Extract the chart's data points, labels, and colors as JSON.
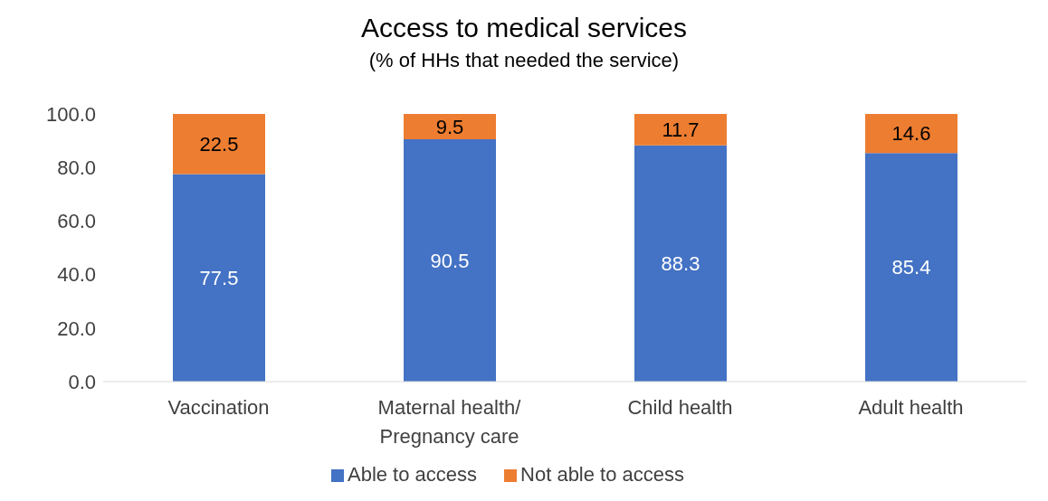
{
  "chart_data": {
    "type": "bar",
    "stacked": true,
    "title": "Access to medical services",
    "subtitle": "(% of HHs that needed the service)",
    "categories": [
      "Vaccination",
      "Maternal health/\nPregnancy care",
      "Child health",
      "Adult health"
    ],
    "series": [
      {
        "name": "Able to access",
        "color": "#4472c4",
        "values": [
          77.5,
          90.5,
          88.3,
          85.4
        ]
      },
      {
        "name": "Not able to access",
        "color": "#ed7d31",
        "values": [
          22.5,
          9.5,
          11.7,
          14.6
        ]
      }
    ],
    "ylim": [
      0,
      100
    ],
    "yticks": [
      {
        "value": 0,
        "label": "0.0"
      },
      {
        "value": 20,
        "label": "20.0"
      },
      {
        "value": 40,
        "label": "40.0"
      },
      {
        "value": 60,
        "label": "60.0"
      },
      {
        "value": 80,
        "label": "80.0"
      },
      {
        "value": 100,
        "label": "100.0"
      }
    ],
    "grid": false,
    "legend": "bottom",
    "data_labels": true
  }
}
